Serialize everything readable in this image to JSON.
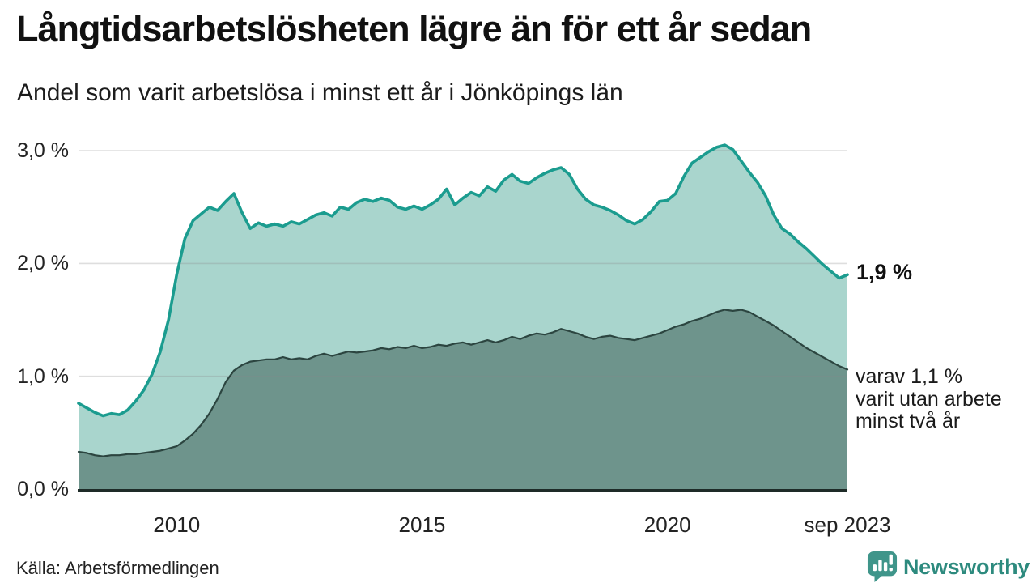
{
  "chart_data": {
    "type": "area",
    "title": "Långtidsarbetslösheten lägre än för ett år sedan",
    "subtitle": "Andel som varit arbetslösa i minst ett år i Jönköpings län",
    "x_start": 2008.0,
    "x_step": 0.1666667,
    "x_range_note": "monthly-ish points from 2008 to sep 2023",
    "ylim": [
      0,
      3.2
    ],
    "grid": "horizontal-only",
    "yticks": [
      {
        "v": 0,
        "label": "0,0 %"
      },
      {
        "v": 1,
        "label": "1,0 %"
      },
      {
        "v": 2,
        "label": "2,0 %"
      },
      {
        "v": 3,
        "label": "3,0 %"
      }
    ],
    "xticks": [
      {
        "v": 2010,
        "label": "2010"
      },
      {
        "v": 2015,
        "label": "2015"
      },
      {
        "v": 2020,
        "label": "2020"
      },
      {
        "v": 2023.6667,
        "label": "sep 2023"
      }
    ],
    "series": [
      {
        "name": "minst ett år",
        "line_color": "#1b9c8f",
        "fill_color": "#a9d5cd",
        "values": [
          0.76,
          0.72,
          0.68,
          0.65,
          0.67,
          0.66,
          0.7,
          0.78,
          0.88,
          1.02,
          1.22,
          1.5,
          1.9,
          2.22,
          2.38,
          2.44,
          2.5,
          2.47,
          2.55,
          2.62,
          2.45,
          2.31,
          2.36,
          2.33,
          2.35,
          2.33,
          2.37,
          2.35,
          2.39,
          2.43,
          2.45,
          2.42,
          2.5,
          2.48,
          2.54,
          2.57,
          2.55,
          2.58,
          2.56,
          2.5,
          2.48,
          2.51,
          2.48,
          2.52,
          2.57,
          2.66,
          2.52,
          2.58,
          2.63,
          2.6,
          2.68,
          2.64,
          2.74,
          2.79,
          2.73,
          2.71,
          2.76,
          2.8,
          2.83,
          2.85,
          2.79,
          2.66,
          2.57,
          2.52,
          2.5,
          2.47,
          2.43,
          2.38,
          2.35,
          2.39,
          2.46,
          2.55,
          2.56,
          2.62,
          2.77,
          2.89,
          2.94,
          2.99,
          3.03,
          3.05,
          3.01,
          2.91,
          2.81,
          2.72,
          2.6,
          2.43,
          2.31,
          2.26,
          2.19,
          2.13,
          2.06,
          1.99,
          1.93,
          1.87,
          1.9
        ]
      },
      {
        "name": "minst två år",
        "line_color": "#2c4540",
        "fill_color": "#6e948c",
        "values": [
          0.33,
          0.32,
          0.3,
          0.29,
          0.3,
          0.3,
          0.31,
          0.31,
          0.32,
          0.33,
          0.34,
          0.36,
          0.38,
          0.43,
          0.49,
          0.57,
          0.67,
          0.8,
          0.95,
          1.05,
          1.1,
          1.13,
          1.14,
          1.15,
          1.15,
          1.17,
          1.15,
          1.16,
          1.15,
          1.18,
          1.2,
          1.18,
          1.2,
          1.22,
          1.21,
          1.22,
          1.23,
          1.25,
          1.24,
          1.26,
          1.25,
          1.27,
          1.25,
          1.26,
          1.28,
          1.27,
          1.29,
          1.3,
          1.28,
          1.3,
          1.32,
          1.3,
          1.32,
          1.35,
          1.33,
          1.36,
          1.38,
          1.37,
          1.39,
          1.42,
          1.4,
          1.38,
          1.35,
          1.33,
          1.35,
          1.36,
          1.34,
          1.33,
          1.32,
          1.34,
          1.36,
          1.38,
          1.41,
          1.44,
          1.46,
          1.49,
          1.51,
          1.54,
          1.57,
          1.59,
          1.58,
          1.59,
          1.57,
          1.53,
          1.49,
          1.45,
          1.4,
          1.35,
          1.3,
          1.25,
          1.21,
          1.17,
          1.13,
          1.09,
          1.06
        ]
      }
    ],
    "annotations": {
      "end_value_label": "1,9 %",
      "secondary_lines": [
        "varav 1,1 %",
        "varit utan arbete",
        "minst två år"
      ]
    },
    "source": "Källa: Arbetsförmedlingen",
    "legend_position": "none"
  },
  "branding": {
    "name": "Newsworthy",
    "text_color": "#2d8a7e",
    "icon": "newsworthy-speech-bubble-bar-chart-icon",
    "icon_bg": "#3f958a"
  }
}
